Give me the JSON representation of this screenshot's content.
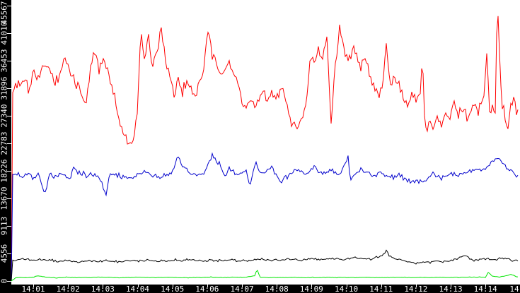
{
  "window": {
    "background": "#000000",
    "plot_background": "#ffffff",
    "axis_text_color": "#ffffff"
  },
  "chart_data": {
    "type": "line",
    "title": "",
    "xlabel": "",
    "ylabel": "",
    "grid": false,
    "legend": "none",
    "x_axis": {
      "unit": "time (HH:MM)",
      "labels": [
        "14:01",
        "14:02",
        "14:03",
        "14:04",
        "14:05",
        "14:06",
        "14:07",
        "14:08",
        "14:09",
        "14:10",
        "14:11",
        "14:12",
        "14:13",
        "14:14",
        "14"
      ],
      "range_minutes_after_1400": [
        0.37,
        14.97
      ]
    },
    "y_axis": {
      "min": 0,
      "max": 45567,
      "tick_interval": 4556.7,
      "labels": [
        "0",
        "4556",
        "9113",
        "13670",
        "18226",
        "22783",
        "27340",
        "31896",
        "36453",
        "41010",
        "45567"
      ]
    },
    "series": [
      {
        "name": "red-series",
        "color": "#ff0000",
        "noise_amp": 1150,
        "points": [
          [
            0.37,
            0
          ],
          [
            0.41,
            31300
          ],
          [
            0.55,
            32700
          ],
          [
            0.7,
            33900
          ],
          [
            0.86,
            31900
          ],
          [
            1.02,
            34800
          ],
          [
            1.16,
            33400
          ],
          [
            1.31,
            36200
          ],
          [
            1.47,
            34800
          ],
          [
            1.63,
            32700
          ],
          [
            1.77,
            34200
          ],
          [
            1.92,
            37100
          ],
          [
            2.08,
            34200
          ],
          [
            2.24,
            32700
          ],
          [
            2.38,
            30400
          ],
          [
            2.53,
            29600
          ],
          [
            2.65,
            35400
          ],
          [
            2.75,
            38300
          ],
          [
            2.89,
            35000
          ],
          [
            3.05,
            36600
          ],
          [
            3.2,
            33700
          ],
          [
            3.34,
            30700
          ],
          [
            3.46,
            26600
          ],
          [
            3.6,
            24300
          ],
          [
            3.75,
            22600
          ],
          [
            3.87,
            23700
          ],
          [
            3.99,
            27800
          ],
          [
            4.09,
            40900
          ],
          [
            4.21,
            36600
          ],
          [
            4.32,
            40100
          ],
          [
            4.44,
            35400
          ],
          [
            4.56,
            38300
          ],
          [
            4.68,
            41800
          ],
          [
            4.8,
            37100
          ],
          [
            4.93,
            34200
          ],
          [
            5.05,
            30700
          ],
          [
            5.17,
            33700
          ],
          [
            5.29,
            31300
          ],
          [
            5.41,
            33100
          ],
          [
            5.54,
            31900
          ],
          [
            5.66,
            30700
          ],
          [
            5.78,
            32500
          ],
          [
            5.9,
            35400
          ],
          [
            6.02,
            41600
          ],
          [
            6.15,
            37700
          ],
          [
            6.27,
            36000
          ],
          [
            6.39,
            33700
          ],
          [
            6.51,
            35400
          ],
          [
            6.63,
            36600
          ],
          [
            6.76,
            34800
          ],
          [
            6.88,
            31900
          ],
          [
            7.0,
            30100
          ],
          [
            7.12,
            28700
          ],
          [
            7.24,
            30100
          ],
          [
            7.37,
            29200
          ],
          [
            7.49,
            30700
          ],
          [
            7.61,
            31600
          ],
          [
            7.73,
            30100
          ],
          [
            7.85,
            31300
          ],
          [
            7.98,
            29900
          ],
          [
            8.1,
            31900
          ],
          [
            8.22,
            30700
          ],
          [
            8.34,
            28000
          ],
          [
            8.46,
            26100
          ],
          [
            8.59,
            25700
          ],
          [
            8.71,
            26900
          ],
          [
            8.83,
            28400
          ],
          [
            8.95,
            35400
          ],
          [
            9.07,
            36600
          ],
          [
            9.2,
            38300
          ],
          [
            9.32,
            36600
          ],
          [
            9.44,
            40700
          ],
          [
            9.56,
            26100
          ],
          [
            9.68,
            36000
          ],
          [
            9.81,
            41600
          ],
          [
            9.93,
            38900
          ],
          [
            10.05,
            36000
          ],
          [
            10.17,
            38900
          ],
          [
            10.29,
            37400
          ],
          [
            10.42,
            35400
          ],
          [
            10.54,
            37100
          ],
          [
            10.66,
            34200
          ],
          [
            10.78,
            32500
          ],
          [
            10.9,
            30700
          ],
          [
            11.03,
            31600
          ],
          [
            11.15,
            39500
          ],
          [
            11.27,
            31900
          ],
          [
            11.39,
            33900
          ],
          [
            11.51,
            32500
          ],
          [
            11.64,
            30700
          ],
          [
            11.76,
            29000
          ],
          [
            11.88,
            31300
          ],
          [
            12.0,
            29600
          ],
          [
            12.12,
            30100
          ],
          [
            12.19,
            37100
          ],
          [
            12.27,
            24300
          ],
          [
            12.37,
            26400
          ],
          [
            12.49,
            25500
          ],
          [
            12.61,
            27200
          ],
          [
            12.74,
            26100
          ],
          [
            12.86,
            27800
          ],
          [
            12.98,
            26400
          ],
          [
            13.1,
            29600
          ],
          [
            13.22,
            27600
          ],
          [
            13.35,
            28400
          ],
          [
            13.47,
            26900
          ],
          [
            13.59,
            28000
          ],
          [
            13.71,
            29200
          ],
          [
            13.83,
            27800
          ],
          [
            13.96,
            30100
          ],
          [
            14.04,
            38300
          ],
          [
            14.12,
            28400
          ],
          [
            14.2,
            29000
          ],
          [
            14.28,
            27800
          ],
          [
            14.34,
            46600
          ],
          [
            14.4,
            37400
          ],
          [
            14.48,
            29000
          ],
          [
            14.57,
            27200
          ],
          [
            14.65,
            24900
          ],
          [
            14.73,
            29000
          ],
          [
            14.81,
            30400
          ],
          [
            14.89,
            28000
          ],
          [
            14.97,
            29200
          ]
        ]
      },
      {
        "name": "blue-series",
        "color": "#0000cc",
        "noise_amp": 480,
        "points": [
          [
            0.37,
            0
          ],
          [
            0.41,
            17600
          ],
          [
            0.55,
            17900
          ],
          [
            0.7,
            17300
          ],
          [
            0.86,
            17800
          ],
          [
            1.02,
            16900
          ],
          [
            1.16,
            17500
          ],
          [
            1.33,
            14100
          ],
          [
            1.47,
            17600
          ],
          [
            1.63,
            17200
          ],
          [
            1.77,
            17900
          ],
          [
            1.92,
            17400
          ],
          [
            2.08,
            17100
          ],
          [
            2.15,
            18700
          ],
          [
            2.38,
            17500
          ],
          [
            2.53,
            17200
          ],
          [
            2.65,
            17800
          ],
          [
            2.89,
            17300
          ],
          [
            3.1,
            14000
          ],
          [
            3.2,
            17600
          ],
          [
            3.46,
            17400
          ],
          [
            3.75,
            17000
          ],
          [
            3.99,
            17700
          ],
          [
            4.21,
            18100
          ],
          [
            4.44,
            17500
          ],
          [
            4.68,
            17200
          ],
          [
            4.93,
            17600
          ],
          [
            5.17,
            20200
          ],
          [
            5.41,
            18300
          ],
          [
            5.66,
            17400
          ],
          [
            5.9,
            17800
          ],
          [
            6.15,
            21000
          ],
          [
            6.39,
            18900
          ],
          [
            6.51,
            17300
          ],
          [
            6.63,
            18600
          ],
          [
            6.88,
            17500
          ],
          [
            7.12,
            18100
          ],
          [
            7.24,
            15800
          ],
          [
            7.37,
            19600
          ],
          [
            7.49,
            18300
          ],
          [
            7.61,
            17600
          ],
          [
            7.85,
            18800
          ],
          [
            8.1,
            16500
          ],
          [
            8.34,
            17500
          ],
          [
            8.59,
            18500
          ],
          [
            8.83,
            17700
          ],
          [
            9.07,
            19000
          ],
          [
            9.32,
            17600
          ],
          [
            9.56,
            18400
          ],
          [
            9.81,
            17700
          ],
          [
            10.05,
            20600
          ],
          [
            10.11,
            16700
          ],
          [
            10.29,
            17900
          ],
          [
            10.54,
            18300
          ],
          [
            10.78,
            17300
          ],
          [
            11.03,
            17900
          ],
          [
            11.27,
            17200
          ],
          [
            11.51,
            17700
          ],
          [
            11.76,
            16600
          ],
          [
            12.0,
            16500
          ],
          [
            12.24,
            16400
          ],
          [
            12.49,
            17600
          ],
          [
            12.74,
            17100
          ],
          [
            12.98,
            17800
          ],
          [
            13.22,
            17400
          ],
          [
            13.47,
            18000
          ],
          [
            13.71,
            18500
          ],
          [
            13.96,
            18300
          ],
          [
            14.2,
            19900
          ],
          [
            14.36,
            20300
          ],
          [
            14.57,
            19000
          ],
          [
            14.73,
            18300
          ],
          [
            14.89,
            17400
          ],
          [
            14.97,
            17300
          ]
        ]
      },
      {
        "name": "black-series",
        "color": "#000000",
        "noise_amp": 220,
        "points": [
          [
            0.37,
            0
          ],
          [
            0.41,
            3300
          ],
          [
            0.7,
            3700
          ],
          [
            1.02,
            3400
          ],
          [
            1.31,
            3550
          ],
          [
            1.63,
            3250
          ],
          [
            1.92,
            3400
          ],
          [
            2.24,
            3100
          ],
          [
            2.53,
            3300
          ],
          [
            2.83,
            3150
          ],
          [
            3.12,
            3350
          ],
          [
            3.42,
            3200
          ],
          [
            3.71,
            3400
          ],
          [
            4.01,
            3300
          ],
          [
            4.31,
            3500
          ],
          [
            4.6,
            3200
          ],
          [
            4.9,
            3450
          ],
          [
            5.2,
            3300
          ],
          [
            5.49,
            3500
          ],
          [
            5.78,
            3300
          ],
          [
            6.08,
            3400
          ],
          [
            6.37,
            3250
          ],
          [
            6.67,
            3500
          ],
          [
            6.96,
            3300
          ],
          [
            7.26,
            3450
          ],
          [
            7.55,
            3600
          ],
          [
            7.85,
            3400
          ],
          [
            8.14,
            3500
          ],
          [
            8.44,
            3650
          ],
          [
            8.73,
            3400
          ],
          [
            9.03,
            3700
          ],
          [
            9.32,
            3500
          ],
          [
            9.62,
            3800
          ],
          [
            9.91,
            3500
          ],
          [
            10.21,
            3900
          ],
          [
            10.5,
            3600
          ],
          [
            10.8,
            3700
          ],
          [
            11.1,
            4400
          ],
          [
            11.15,
            5100
          ],
          [
            11.22,
            4200
          ],
          [
            11.39,
            3700
          ],
          [
            11.69,
            3300
          ],
          [
            11.98,
            2900
          ],
          [
            12.28,
            3100
          ],
          [
            12.57,
            3300
          ],
          [
            12.86,
            3200
          ],
          [
            13.16,
            3500
          ],
          [
            13.39,
            4300
          ],
          [
            13.63,
            3400
          ],
          [
            13.92,
            3700
          ],
          [
            14.22,
            3500
          ],
          [
            14.51,
            3800
          ],
          [
            14.81,
            3300
          ],
          [
            14.97,
            3400
          ]
        ]
      },
      {
        "name": "green-series",
        "color": "#00e600",
        "noise_amp": 60,
        "points": [
          [
            0.37,
            0
          ],
          [
            0.5,
            550
          ],
          [
            1.0,
            600
          ],
          [
            1.1,
            850
          ],
          [
            1.5,
            550
          ],
          [
            2.0,
            600
          ],
          [
            2.5,
            550
          ],
          [
            3.0,
            620
          ],
          [
            3.5,
            560
          ],
          [
            4.0,
            640
          ],
          [
            4.5,
            560
          ],
          [
            5.0,
            600
          ],
          [
            5.5,
            560
          ],
          [
            6.0,
            620
          ],
          [
            6.5,
            570
          ],
          [
            6.9,
            700
          ],
          [
            7.0,
            560
          ],
          [
            7.38,
            900
          ],
          [
            7.43,
            2100
          ],
          [
            7.47,
            1300
          ],
          [
            7.52,
            600
          ],
          [
            8.0,
            570
          ],
          [
            8.5,
            600
          ],
          [
            9.0,
            560
          ],
          [
            9.5,
            620
          ],
          [
            10.0,
            570
          ],
          [
            10.5,
            600
          ],
          [
            11.0,
            560
          ],
          [
            11.5,
            620
          ],
          [
            12.0,
            570
          ],
          [
            12.5,
            600
          ],
          [
            13.0,
            580
          ],
          [
            13.5,
            640
          ],
          [
            14.0,
            600
          ],
          [
            14.08,
            1400
          ],
          [
            14.2,
            800
          ],
          [
            14.4,
            650
          ],
          [
            14.6,
            900
          ],
          [
            14.75,
            1100
          ],
          [
            14.9,
            700
          ],
          [
            14.97,
            650
          ]
        ]
      }
    ]
  }
}
